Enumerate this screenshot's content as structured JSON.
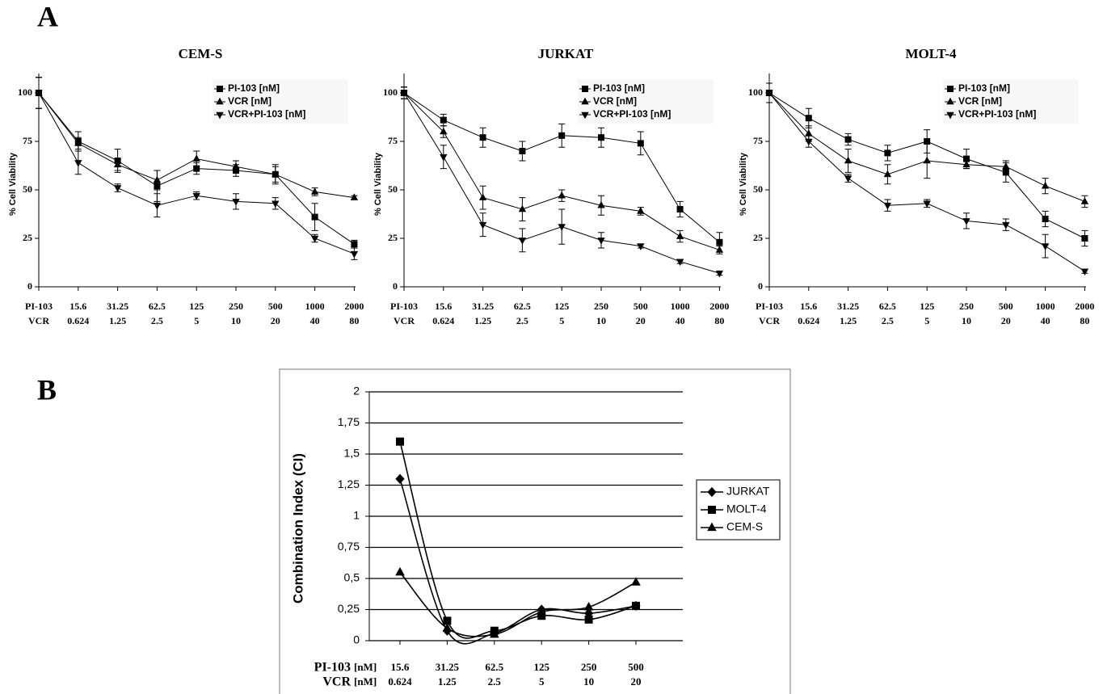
{
  "figure_labels": [
    "A",
    "B"
  ],
  "chart_data": [
    {
      "type": "line",
      "title": "CEM-S",
      "ylabel": "% Cell Viability",
      "categories": [
        "PI-103",
        "15.6",
        "31.25",
        "62.5",
        "125",
        "250",
        "500",
        "1000",
        "2000"
      ],
      "categories2": [
        "VCR",
        "0.624",
        "1.25",
        "2.5",
        "5",
        "10",
        "20",
        "40",
        "80"
      ],
      "ylim": [
        0,
        110
      ],
      "yticks": [
        0,
        25,
        50,
        75,
        100
      ],
      "grid": false,
      "legend": "upper right",
      "series": [
        {
          "name": "PI-103  [nM]",
          "color": "#000000",
          "marker": "square",
          "values": [
            100,
            75,
            65,
            52,
            61,
            60,
            58,
            36,
            22
          ],
          "errors": [
            8,
            5,
            6,
            8,
            3,
            3,
            4,
            7,
            2
          ]
        },
        {
          "name": "VCR      [nM]",
          "color": "#000000",
          "marker": "triangle-up",
          "values": [
            100,
            74,
            63,
            55,
            66,
            62,
            58,
            49,
            46
          ],
          "errors": [
            8,
            3,
            3,
            5,
            4,
            3,
            5,
            2,
            1
          ]
        },
        {
          "name": "VCR+PI-103  [nM]",
          "color": "#000000",
          "marker": "triangle-down",
          "values": [
            100,
            64,
            51,
            42,
            47,
            44,
            43,
            25,
            17
          ],
          "errors": [
            8,
            6,
            2,
            6,
            2,
            4,
            3,
            2,
            3
          ]
        }
      ]
    },
    {
      "type": "line",
      "title": "JURKAT",
      "ylabel": "% Cell Viability",
      "categories": [
        "PI-103",
        "15.6",
        "31.25",
        "62.5",
        "125",
        "250",
        "500",
        "1000",
        "2000"
      ],
      "categories2": [
        "VCR",
        "0.624",
        "1.25",
        "2.5",
        "5",
        "10",
        "20",
        "40",
        "80"
      ],
      "ylim": [
        0,
        110
      ],
      "yticks": [
        0,
        25,
        50,
        75,
        100
      ],
      "grid": false,
      "legend": "upper right",
      "series": [
        {
          "name": "PI-103   [nM]",
          "color": "#000000",
          "marker": "square",
          "values": [
            100,
            86,
            77,
            70,
            78,
            77,
            74,
            40,
            23
          ],
          "errors": [
            3,
            3,
            5,
            5,
            6,
            5,
            6,
            4,
            5
          ]
        },
        {
          "name": "VCR       [nM]",
          "color": "#000000",
          "marker": "triangle-up",
          "values": [
            100,
            80,
            46,
            40,
            47,
            42,
            39,
            26,
            19
          ],
          "errors": [
            3,
            3,
            6,
            6,
            3,
            5,
            2,
            3,
            2
          ]
        },
        {
          "name": "VCR+PI-103  [nM]",
          "color": "#000000",
          "marker": "triangle-down",
          "values": [
            100,
            67,
            32,
            24,
            31,
            24,
            21,
            13,
            7
          ],
          "errors": [
            3,
            6,
            6,
            6,
            9,
            4,
            1,
            1,
            1
          ]
        }
      ]
    },
    {
      "type": "line",
      "title": "MOLT-4",
      "ylabel": "% Cell Viability",
      "categories": [
        "PI-103",
        "15.6",
        "31.25",
        "62.5",
        "125",
        "250",
        "500",
        "1000",
        "2000"
      ],
      "categories2": [
        "VCR",
        "0.624",
        "1.25",
        "2.5",
        "5",
        "10",
        "20",
        "40",
        "80"
      ],
      "ylim": [
        0,
        110
      ],
      "yticks": [
        0,
        25,
        50,
        75,
        100
      ],
      "grid": false,
      "legend": "upper right",
      "series": [
        {
          "name": "PI-103   [nM]",
          "color": "#000000",
          "marker": "square",
          "values": [
            100,
            87,
            76,
            69,
            75,
            66,
            59,
            35,
            25
          ],
          "errors": [
            5,
            5,
            3,
            4,
            6,
            5,
            5,
            4,
            4
          ]
        },
        {
          "name": "VCR       [nM]",
          "color": "#000000",
          "marker": "triangle-up",
          "values": [
            100,
            79,
            65,
            58,
            65,
            63,
            62,
            52,
            44
          ],
          "errors": [
            5,
            4,
            6,
            5,
            9,
            2,
            3,
            4,
            3
          ]
        },
        {
          "name": "VCR+PI-103  [nM]",
          "color": "#000000",
          "marker": "triangle-down",
          "values": [
            100,
            75,
            56,
            42,
            43,
            34,
            32,
            21,
            8
          ],
          "errors": [
            5,
            3,
            2,
            3,
            2,
            4,
            3,
            6,
            1
          ]
        }
      ]
    },
    {
      "type": "line",
      "ylabel": "Combination Index (CI)",
      "row1": {
        "label": "PI-103",
        "unit": "[nM]"
      },
      "row2": {
        "label": "VCR",
        "unit": "[nM]"
      },
      "categories": [
        "15.6",
        "31.25",
        "62.5",
        "125",
        "250",
        "500"
      ],
      "categories2": [
        "0.624",
        "1.25",
        "2.5",
        "5",
        "10",
        "20"
      ],
      "ylim": [
        0,
        2
      ],
      "yticks": [
        0,
        {
          "value": 0.25,
          "label": "0,25"
        },
        {
          "value": 0.5,
          "label": "0,5"
        },
        {
          "value": 0.75,
          "label": "0,75"
        },
        1,
        {
          "value": 1.25,
          "label": "1,25"
        },
        {
          "value": 1.5,
          "label": "1,5"
        },
        {
          "value": 1.75,
          "label": "1,75"
        },
        2
      ],
      "grid": true,
      "smooth": true,
      "legend": "right",
      "series": [
        {
          "name": "JURKAT",
          "color": "#000000",
          "marker": "diamond",
          "values": [
            1.3,
            0.08,
            0.06,
            0.25,
            0.22,
            0.28
          ]
        },
        {
          "name": "MOLT-4",
          "color": "#000000",
          "marker": "square",
          "values": [
            1.6,
            0.16,
            0.08,
            0.2,
            0.17,
            0.28
          ]
        },
        {
          "name": "CEM-S",
          "color": "#000000",
          "marker": "triangle-up",
          "values": [
            0.55,
            0.1,
            0.05,
            0.23,
            0.27,
            0.47
          ]
        }
      ]
    }
  ]
}
